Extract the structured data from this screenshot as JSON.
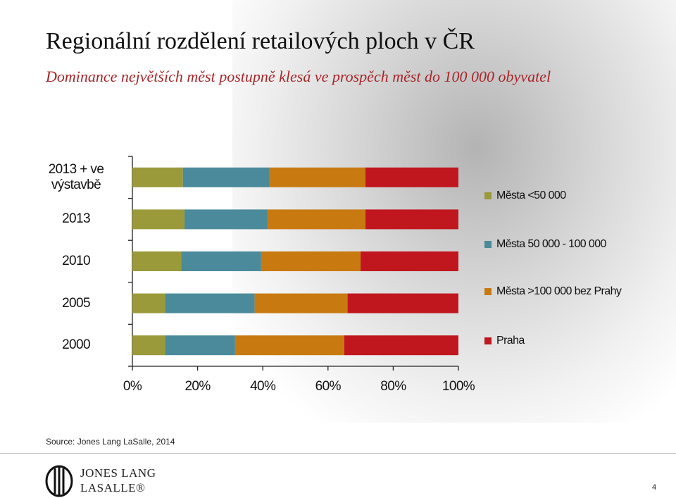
{
  "chart_data": {
    "type": "stacked-barh",
    "title": "Regionální rozdělení retailových ploch v ČR",
    "subtitle": "Dominance největších měst postupně klesá ve prospěch měst do 100 000 obyvatel",
    "categories": [
      "2013 + ve výstavbě",
      "2013",
      "2010",
      "2005",
      "2000"
    ],
    "series": [
      {
        "name": "Města <50 000",
        "color": "#9a9a3a",
        "values": [
          15.5,
          16,
          15,
          10,
          10
        ]
      },
      {
        "name": "Města 50 000 - 100 000",
        "color": "#4a8a9a",
        "values": [
          26.5,
          25.5,
          24.5,
          27.5,
          21.5
        ]
      },
      {
        "name": "Města >100 000 bez Prahy",
        "color": "#c87a10",
        "values": [
          29.5,
          30,
          30.5,
          28.5,
          33.5
        ]
      },
      {
        "name": "Praha",
        "color": "#c0161e",
        "values": [
          28.5,
          28.5,
          30,
          34,
          35
        ]
      }
    ],
    "xlim": [
      0,
      100
    ],
    "xticks": [
      {
        "value": 0,
        "label": "0%"
      },
      {
        "value": 20,
        "label": "20%"
      },
      {
        "value": 40,
        "label": "40%"
      },
      {
        "value": 60,
        "label": "60%"
      },
      {
        "value": 80,
        "label": "80%"
      },
      {
        "value": 100,
        "label": "100%"
      }
    ],
    "legend": "right"
  },
  "slide": {
    "source": "Source: Jones Lang LaSalle, 2014",
    "logo_line1": "JONES LANG",
    "logo_line2": "LASALLE®",
    "page_number": "4"
  }
}
